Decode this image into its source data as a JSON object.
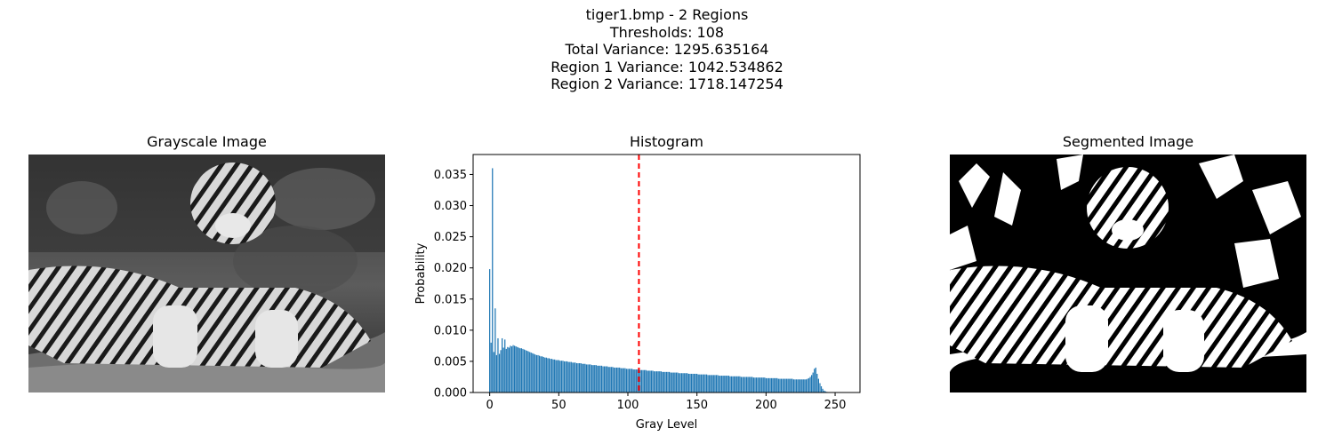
{
  "figure": {
    "suptitle_lines": [
      "tiger1.bmp - 2 Regions",
      "Thresholds: 108",
      "Total Variance: 1295.635164",
      "Region 1 Variance: 1042.534862",
      "Region 2 Variance: 1718.147254"
    ]
  },
  "panels": {
    "grayscale": {
      "title": "Grayscale Image"
    },
    "histogram": {
      "title": "Histogram"
    },
    "segmented": {
      "title": "Segmented Image"
    }
  },
  "colors": {
    "bar": "#1f77b4",
    "threshold_line": "#ff0000"
  },
  "chart_data": {
    "type": "bar",
    "title": "Histogram",
    "xlabel": "Gray Level",
    "ylabel": "Probability",
    "xlim": [
      -12,
      268
    ],
    "ylim": [
      0,
      0.0382
    ],
    "xticks": [
      0,
      50,
      100,
      150,
      200,
      250
    ],
    "yticks": [
      0.0,
      0.005,
      0.01,
      0.015,
      0.02,
      0.025,
      0.03,
      0.035
    ],
    "threshold": 108,
    "values": [
      0.0198,
      0.008,
      0.036,
      0.0065,
      0.0135,
      0.006,
      0.0087,
      0.0062,
      0.0068,
      0.0087,
      0.0072,
      0.0085,
      0.007,
      0.0073,
      0.0072,
      0.0075,
      0.0074,
      0.0076,
      0.0075,
      0.0074,
      0.0073,
      0.0072,
      0.0071,
      0.0071,
      0.007,
      0.0069,
      0.0068,
      0.0067,
      0.0066,
      0.0065,
      0.0064,
      0.0063,
      0.0062,
      0.0061,
      0.006,
      0.006,
      0.0059,
      0.0058,
      0.0058,
      0.0057,
      0.0056,
      0.0056,
      0.0055,
      0.0055,
      0.0054,
      0.0054,
      0.0053,
      0.0053,
      0.0052,
      0.0052,
      0.0052,
      0.0051,
      0.0051,
      0.0051,
      0.005,
      0.005,
      0.005,
      0.0049,
      0.0049,
      0.0049,
      0.0048,
      0.0048,
      0.0048,
      0.0047,
      0.0047,
      0.0047,
      0.0047,
      0.0046,
      0.0046,
      0.0046,
      0.0045,
      0.0045,
      0.0045,
      0.0045,
      0.0044,
      0.0044,
      0.0044,
      0.0044,
      0.0043,
      0.0043,
      0.0043,
      0.0043,
      0.0042,
      0.0042,
      0.0042,
      0.0042,
      0.0041,
      0.0041,
      0.0041,
      0.0041,
      0.004,
      0.004,
      0.004,
      0.004,
      0.004,
      0.0039,
      0.0039,
      0.0039,
      0.0039,
      0.0038,
      0.0038,
      0.0038,
      0.0038,
      0.0038,
      0.0037,
      0.0037,
      0.0037,
      0.0037,
      0.0037,
      0.0036,
      0.0036,
      0.0036,
      0.0036,
      0.0036,
      0.0035,
      0.0035,
      0.0035,
      0.0035,
      0.0035,
      0.0034,
      0.0034,
      0.0034,
      0.0034,
      0.0034,
      0.0034,
      0.0033,
      0.0033,
      0.0033,
      0.0033,
      0.0033,
      0.0033,
      0.0032,
      0.0032,
      0.0032,
      0.0032,
      0.0032,
      0.0032,
      0.0031,
      0.0031,
      0.0031,
      0.0031,
      0.0031,
      0.0031,
      0.0031,
      0.003,
      0.003,
      0.003,
      0.003,
      0.003,
      0.003,
      0.003,
      0.0029,
      0.0029,
      0.0029,
      0.0029,
      0.0029,
      0.0029,
      0.0029,
      0.0028,
      0.0028,
      0.0028,
      0.0028,
      0.0028,
      0.0028,
      0.0028,
      0.0028,
      0.0027,
      0.0027,
      0.0027,
      0.0027,
      0.0027,
      0.0027,
      0.0027,
      0.0027,
      0.0026,
      0.0026,
      0.0026,
      0.0026,
      0.0026,
      0.0026,
      0.0026,
      0.0026,
      0.0025,
      0.0025,
      0.0025,
      0.0025,
      0.0025,
      0.0025,
      0.0025,
      0.0025,
      0.0025,
      0.0024,
      0.0024,
      0.0024,
      0.0024,
      0.0024,
      0.0024,
      0.0024,
      0.0024,
      0.0024,
      0.0023,
      0.0023,
      0.0023,
      0.0023,
      0.0023,
      0.0023,
      0.0023,
      0.0023,
      0.0023,
      0.0022,
      0.0022,
      0.0022,
      0.0022,
      0.0022,
      0.0022,
      0.0022,
      0.0022,
      0.0022,
      0.0022,
      0.0022,
      0.0021,
      0.0021,
      0.0021,
      0.0021,
      0.0021,
      0.0021,
      0.0021,
      0.0021,
      0.0021,
      0.0021,
      0.0022,
      0.0023,
      0.0025,
      0.0028,
      0.0032,
      0.0038,
      0.004,
      0.003,
      0.0022,
      0.0015,
      0.001,
      0.0006,
      0.0003,
      0.0002,
      0.0001
    ]
  }
}
